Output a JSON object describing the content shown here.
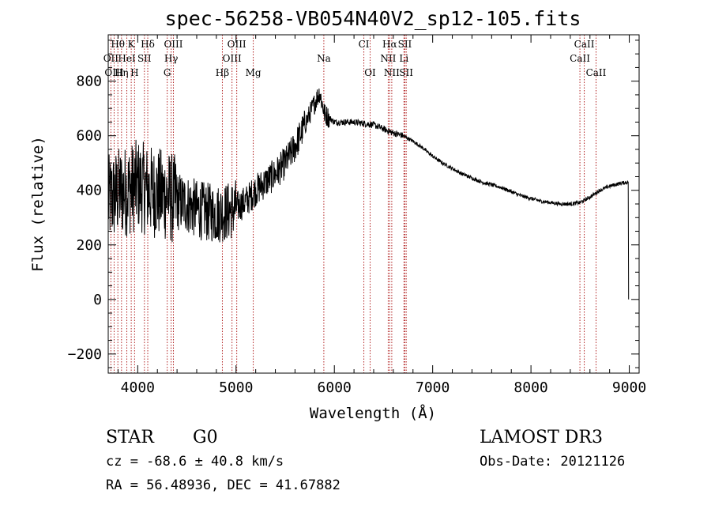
{
  "chart_data": {
    "type": "line",
    "title": "spec-56258-VB054N40V2_sp12-105.fits",
    "xlabel": "Wavelength (Å)",
    "ylabel": "Flux (relative)",
    "xlim": [
      3700,
      9100
    ],
    "ylim": [
      -270,
      970
    ],
    "x_ticks": [
      4000,
      5000,
      6000,
      7000,
      8000,
      9000
    ],
    "y_ticks": [
      -200,
      0,
      200,
      400,
      600,
      800
    ],
    "spectrum_anchors": [
      [
        3700,
        360
      ],
      [
        3800,
        390
      ],
      [
        3900,
        400
      ],
      [
        4000,
        420
      ],
      [
        4100,
        400
      ],
      [
        4200,
        390
      ],
      [
        4300,
        380
      ],
      [
        4400,
        360
      ],
      [
        4500,
        350
      ],
      [
        4600,
        330
      ],
      [
        4700,
        320
      ],
      [
        4800,
        315
      ],
      [
        4900,
        320
      ],
      [
        5000,
        335
      ],
      [
        5100,
        360
      ],
      [
        5200,
        400
      ],
      [
        5300,
        430
      ],
      [
        5400,
        460
      ],
      [
        5500,
        500
      ],
      [
        5600,
        560
      ],
      [
        5700,
        640
      ],
      [
        5800,
        720
      ],
      [
        5850,
        760
      ],
      [
        5900,
        680
      ],
      [
        6000,
        650
      ],
      [
        6100,
        650
      ],
      [
        6200,
        650
      ],
      [
        6300,
        645
      ],
      [
        6400,
        640
      ],
      [
        6500,
        625
      ],
      [
        6600,
        610
      ],
      [
        6700,
        600
      ],
      [
        6800,
        580
      ],
      [
        6900,
        555
      ],
      [
        7000,
        525
      ],
      [
        7100,
        500
      ],
      [
        7200,
        480
      ],
      [
        7300,
        460
      ],
      [
        7400,
        445
      ],
      [
        7500,
        430
      ],
      [
        7600,
        420
      ],
      [
        7700,
        410
      ],
      [
        7800,
        395
      ],
      [
        7900,
        380
      ],
      [
        8000,
        370
      ],
      [
        8100,
        360
      ],
      [
        8200,
        355
      ],
      [
        8300,
        350
      ],
      [
        8400,
        350
      ],
      [
        8500,
        355
      ],
      [
        8600,
        375
      ],
      [
        8700,
        400
      ],
      [
        8800,
        415
      ],
      [
        8900,
        425
      ],
      [
        8990,
        430
      ]
    ],
    "spectral_lines": [
      {
        "label": "Hθ",
        "x": 3798,
        "row": 0
      },
      {
        "label": "K",
        "x": 3934,
        "row": 0
      },
      {
        "label": "Hδ",
        "x": 4102,
        "row": 0
      },
      {
        "label": "OIII",
        "x": 4363,
        "row": 0
      },
      {
        "label": "OIII",
        "x": 5007,
        "row": 0
      },
      {
        "label": "CI",
        "x": 6300,
        "row": 0
      },
      {
        "label": "Hα",
        "x": 6563,
        "row": 0
      },
      {
        "label": "SII",
        "x": 6717,
        "row": 0
      },
      {
        "label": "CaII",
        "x": 8542,
        "row": 0
      },
      {
        "label": "OII",
        "x": 3727,
        "row": 1
      },
      {
        "label": "HeI",
        "x": 3889,
        "row": 1
      },
      {
        "label": "SII",
        "x": 4068,
        "row": 1
      },
      {
        "label": "Hγ",
        "x": 4340,
        "row": 1
      },
      {
        "label": "OIII",
        "x": 4959,
        "row": 1
      },
      {
        "label": "Na",
        "x": 5893,
        "row": 1
      },
      {
        "label": "NII",
        "x": 6548,
        "row": 1
      },
      {
        "label": "Li",
        "x": 6708,
        "row": 1
      },
      {
        "label": "CaII",
        "x": 8498,
        "row": 1
      },
      {
        "label": "OIII",
        "x": 3760,
        "row": 2
      },
      {
        "label": "Hη",
        "x": 3835,
        "row": 2
      },
      {
        "label": "H",
        "x": 3968,
        "row": 2
      },
      {
        "label": "G",
        "x": 4300,
        "row": 2
      },
      {
        "label": "Hβ",
        "x": 4861,
        "row": 2
      },
      {
        "label": "Mg",
        "x": 5175,
        "row": 2
      },
      {
        "label": "OI",
        "x": 6364,
        "row": 2
      },
      {
        "label": "NII",
        "x": 6584,
        "row": 2
      },
      {
        "label": "SII",
        "x": 6731,
        "row": 2
      },
      {
        "label": "CaII",
        "x": 8662,
        "row": 2
      }
    ]
  },
  "info": {
    "class": "STAR",
    "subclass": "G0",
    "survey": "LAMOST DR3",
    "cz": "cz = -68.6 ± 40.8 km/s",
    "obs_date": "Obs-Date: 20121126",
    "coords": "RA =  56.48936, DEC =  41.67882"
  },
  "colors": {
    "line_marker": "#b22222",
    "spectrum": "#000000",
    "axes": "#000000"
  }
}
